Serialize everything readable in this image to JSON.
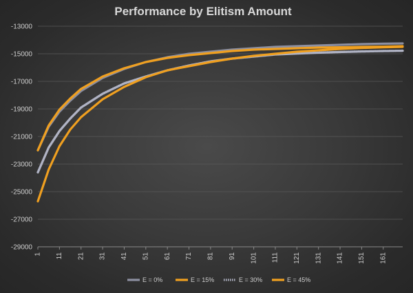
{
  "chart_data": {
    "type": "line",
    "title": "Performance by Elitism Amount",
    "xlabel": "",
    "ylabel": "",
    "xlim": [
      1,
      170
    ],
    "ylim": [
      -29000,
      -13000
    ],
    "yticks": [
      "-13000",
      "-15000",
      "-17000",
      "-19000",
      "-21000",
      "-23000",
      "-25000",
      "-27000",
      "-29000"
    ],
    "xticks": [
      "1",
      "11",
      "21",
      "31",
      "41",
      "51",
      "61",
      "71",
      "81",
      "91",
      "101",
      "111",
      "121",
      "131",
      "141",
      "151",
      "161"
    ],
    "grid": true,
    "legend_position": "bottom",
    "series": [
      {
        "name": "E = 0%",
        "color": "#8c8fa0",
        "style": "solid",
        "points": [
          [
            1,
            -22000
          ],
          [
            6,
            -20300
          ],
          [
            11,
            -19200
          ],
          [
            16,
            -18400
          ],
          [
            21,
            -17700
          ],
          [
            31,
            -16750
          ],
          [
            41,
            -16100
          ],
          [
            51,
            -15600
          ],
          [
            61,
            -15250
          ],
          [
            71,
            -15000
          ],
          [
            81,
            -14850
          ],
          [
            91,
            -14700
          ],
          [
            101,
            -14600
          ],
          [
            111,
            -14500
          ],
          [
            121,
            -14450
          ],
          [
            131,
            -14400
          ],
          [
            141,
            -14350
          ],
          [
            151,
            -14300
          ],
          [
            161,
            -14270
          ],
          [
            170,
            -14250
          ]
        ]
      },
      {
        "name": "E = 15%",
        "color": "#f0a020",
        "style": "solid",
        "points": [
          [
            1,
            -22000
          ],
          [
            6,
            -20200
          ],
          [
            11,
            -19050
          ],
          [
            16,
            -18250
          ],
          [
            21,
            -17550
          ],
          [
            31,
            -16650
          ],
          [
            41,
            -16050
          ],
          [
            51,
            -15600
          ],
          [
            61,
            -15300
          ],
          [
            71,
            -15100
          ],
          [
            81,
            -14950
          ],
          [
            91,
            -14800
          ],
          [
            101,
            -14700
          ],
          [
            111,
            -14650
          ],
          [
            121,
            -14600
          ],
          [
            131,
            -14550
          ],
          [
            141,
            -14530
          ],
          [
            151,
            -14500
          ],
          [
            161,
            -14480
          ],
          [
            170,
            -14450
          ]
        ]
      },
      {
        "name": "E = 30%",
        "color": "#b0b3c4",
        "style": "dotted",
        "points": [
          [
            1,
            -23600
          ],
          [
            6,
            -21800
          ],
          [
            11,
            -20600
          ],
          [
            16,
            -19700
          ],
          [
            21,
            -18900
          ],
          [
            31,
            -17900
          ],
          [
            41,
            -17150
          ],
          [
            51,
            -16650
          ],
          [
            61,
            -16200
          ],
          [
            71,
            -15850
          ],
          [
            81,
            -15550
          ],
          [
            91,
            -15350
          ],
          [
            101,
            -15200
          ],
          [
            111,
            -15050
          ],
          [
            121,
            -14980
          ],
          [
            131,
            -14920
          ],
          [
            141,
            -14870
          ],
          [
            151,
            -14830
          ],
          [
            161,
            -14800
          ],
          [
            170,
            -14780
          ]
        ]
      },
      {
        "name": "E = 45%",
        "color": "#f0a020",
        "style": "solid",
        "points": [
          [
            1,
            -25700
          ],
          [
            6,
            -23400
          ],
          [
            11,
            -21700
          ],
          [
            16,
            -20500
          ],
          [
            21,
            -19600
          ],
          [
            31,
            -18300
          ],
          [
            41,
            -17400
          ],
          [
            51,
            -16700
          ],
          [
            61,
            -16200
          ],
          [
            71,
            -15900
          ],
          [
            81,
            -15600
          ],
          [
            91,
            -15350
          ],
          [
            101,
            -15150
          ],
          [
            111,
            -15000
          ],
          [
            121,
            -14850
          ],
          [
            131,
            -14750
          ],
          [
            141,
            -14650
          ],
          [
            151,
            -14580
          ],
          [
            161,
            -14530
          ],
          [
            170,
            -14500
          ]
        ]
      }
    ]
  }
}
